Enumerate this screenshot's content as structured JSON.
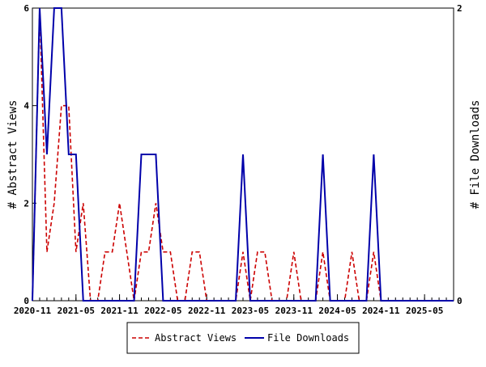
{
  "chart_data": {
    "type": "line",
    "title": "",
    "xlabel": "",
    "ylabel_left": "# Abstract Views",
    "ylabel_right": "# File Downloads",
    "x_ticks": [
      "2020-11",
      "2021-05",
      "2021-11",
      "2022-05",
      "2022-11",
      "2023-05",
      "2023-11",
      "2024-05",
      "2024-11",
      "2025-05"
    ],
    "y_left_ticks": [
      "0",
      "2",
      "4",
      "6"
    ],
    "y_right_ticks": [
      "0",
      "2"
    ],
    "y_left_lim": [
      0,
      6
    ],
    "y_right_lim": [
      0,
      2
    ],
    "x_range": [
      "2020-11",
      "2025-09"
    ],
    "grid": false,
    "legend_position": "bottom",
    "series": [
      {
        "name": "Abstract Views",
        "axis": "left",
        "color": "#cc0000",
        "style": "dashed",
        "points": [
          [
            "2020-11",
            0
          ],
          [
            "2020-12",
            6
          ],
          [
            "2021-01",
            1
          ],
          [
            "2021-02",
            2
          ],
          [
            "2021-03",
            4
          ],
          [
            "2021-04",
            4
          ],
          [
            "2021-05",
            1
          ],
          [
            "2021-06",
            2
          ],
          [
            "2021-07",
            0
          ],
          [
            "2021-08",
            0
          ],
          [
            "2021-09",
            1
          ],
          [
            "2021-10",
            1
          ],
          [
            "2021-11",
            2
          ],
          [
            "2021-12",
            1
          ],
          [
            "2022-01",
            0
          ],
          [
            "2022-02",
            1
          ],
          [
            "2022-03",
            1
          ],
          [
            "2022-04",
            2
          ],
          [
            "2022-05",
            1
          ],
          [
            "2022-06",
            1
          ],
          [
            "2022-07",
            0
          ],
          [
            "2022-08",
            0
          ],
          [
            "2022-09",
            1
          ],
          [
            "2022-10",
            1
          ],
          [
            "2022-11",
            0
          ],
          [
            "2022-12",
            0
          ],
          [
            "2023-01",
            0
          ],
          [
            "2023-02",
            0
          ],
          [
            "2023-03",
            0
          ],
          [
            "2023-04",
            1
          ],
          [
            "2023-05",
            0
          ],
          [
            "2023-06",
            1
          ],
          [
            "2023-07",
            1
          ],
          [
            "2023-08",
            0
          ],
          [
            "2023-09",
            0
          ],
          [
            "2023-10",
            0
          ],
          [
            "2023-11",
            1
          ],
          [
            "2023-12",
            0
          ],
          [
            "2024-01",
            0
          ],
          [
            "2024-02",
            0
          ],
          [
            "2024-03",
            1
          ],
          [
            "2024-04",
            0
          ],
          [
            "2024-05",
            0
          ],
          [
            "2024-06",
            0
          ],
          [
            "2024-07",
            1
          ],
          [
            "2024-08",
            0
          ],
          [
            "2024-09",
            0
          ],
          [
            "2024-10",
            1
          ],
          [
            "2024-11",
            0
          ],
          [
            "2024-12",
            0
          ],
          [
            "2025-01",
            0
          ],
          [
            "2025-02",
            0
          ],
          [
            "2025-03",
            0
          ],
          [
            "2025-04",
            0
          ],
          [
            "2025-05",
            0
          ],
          [
            "2025-06",
            0
          ],
          [
            "2025-07",
            0
          ],
          [
            "2025-08",
            0
          ],
          [
            "2025-09",
            0
          ]
        ]
      },
      {
        "name": "File Downloads",
        "axis": "right",
        "color": "#0000aa",
        "style": "solid",
        "points": [
          [
            "2020-11",
            0
          ],
          [
            "2020-12",
            2
          ],
          [
            "2021-01",
            1
          ],
          [
            "2021-02",
            2
          ],
          [
            "2021-03",
            2
          ],
          [
            "2021-04",
            1
          ],
          [
            "2021-05",
            1
          ],
          [
            "2021-06",
            0
          ],
          [
            "2021-07",
            0
          ],
          [
            "2021-08",
            0
          ],
          [
            "2021-09",
            0
          ],
          [
            "2021-10",
            0
          ],
          [
            "2021-11",
            0
          ],
          [
            "2021-12",
            0
          ],
          [
            "2022-01",
            0
          ],
          [
            "2022-02",
            1
          ],
          [
            "2022-03",
            1
          ],
          [
            "2022-04",
            1
          ],
          [
            "2022-05",
            0
          ],
          [
            "2022-06",
            0
          ],
          [
            "2022-07",
            0
          ],
          [
            "2022-08",
            0
          ],
          [
            "2022-09",
            0
          ],
          [
            "2022-10",
            0
          ],
          [
            "2022-11",
            0
          ],
          [
            "2022-12",
            0
          ],
          [
            "2023-01",
            0
          ],
          [
            "2023-02",
            0
          ],
          [
            "2023-03",
            0
          ],
          [
            "2023-04",
            1
          ],
          [
            "2023-05",
            0
          ],
          [
            "2023-06",
            0
          ],
          [
            "2023-07",
            0
          ],
          [
            "2023-08",
            0
          ],
          [
            "2023-09",
            0
          ],
          [
            "2023-10",
            0
          ],
          [
            "2023-11",
            0
          ],
          [
            "2023-12",
            0
          ],
          [
            "2024-01",
            0
          ],
          [
            "2024-02",
            0
          ],
          [
            "2024-03",
            1
          ],
          [
            "2024-04",
            0
          ],
          [
            "2024-05",
            0
          ],
          [
            "2024-06",
            0
          ],
          [
            "2024-07",
            0
          ],
          [
            "2024-08",
            0
          ],
          [
            "2024-09",
            0
          ],
          [
            "2024-10",
            1
          ],
          [
            "2024-11",
            0
          ],
          [
            "2024-12",
            0
          ],
          [
            "2025-01",
            0
          ],
          [
            "2025-02",
            0
          ],
          [
            "2025-03",
            0
          ],
          [
            "2025-04",
            0
          ],
          [
            "2025-05",
            0
          ],
          [
            "2025-06",
            0
          ],
          [
            "2025-07",
            0
          ],
          [
            "2025-08",
            0
          ],
          [
            "2025-09",
            0
          ]
        ]
      }
    ]
  }
}
